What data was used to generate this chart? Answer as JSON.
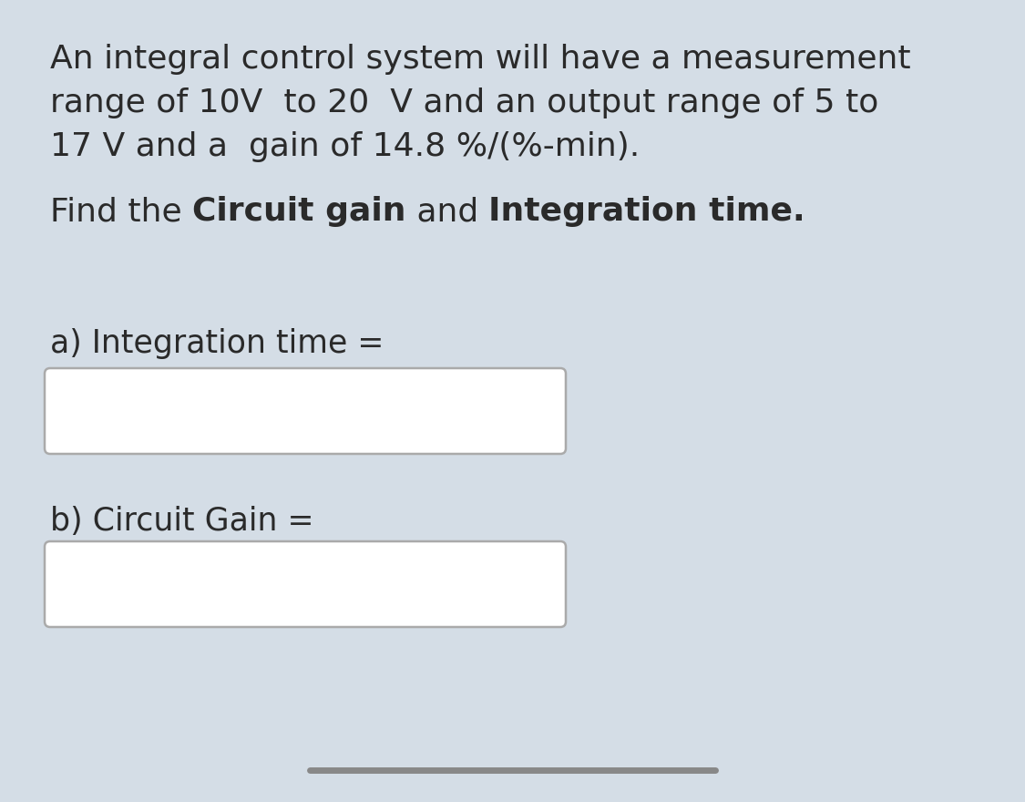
{
  "background_color": "#d4dde6",
  "box_color": "#ffffff",
  "box_border_color": "#aaaaaa",
  "text_color": "#2a2a2a",
  "line1": "An integral control system will have a measurement",
  "line2": "range of 10V  to 20  V and an output range of 5 to",
  "line3": "17 V and a  gain of 14.8 %/(%-min).",
  "line4_normal1": "Find the ",
  "line4_bold1": "Circuit gain",
  "line4_normal2": " and ",
  "line4_bold2": "Integration time.",
  "label_a": "a) Integration time =",
  "label_b": "b) Circuit Gain =",
  "font_size_body": 26,
  "font_size_label": 25,
  "bottom_bar_color": "#888888"
}
